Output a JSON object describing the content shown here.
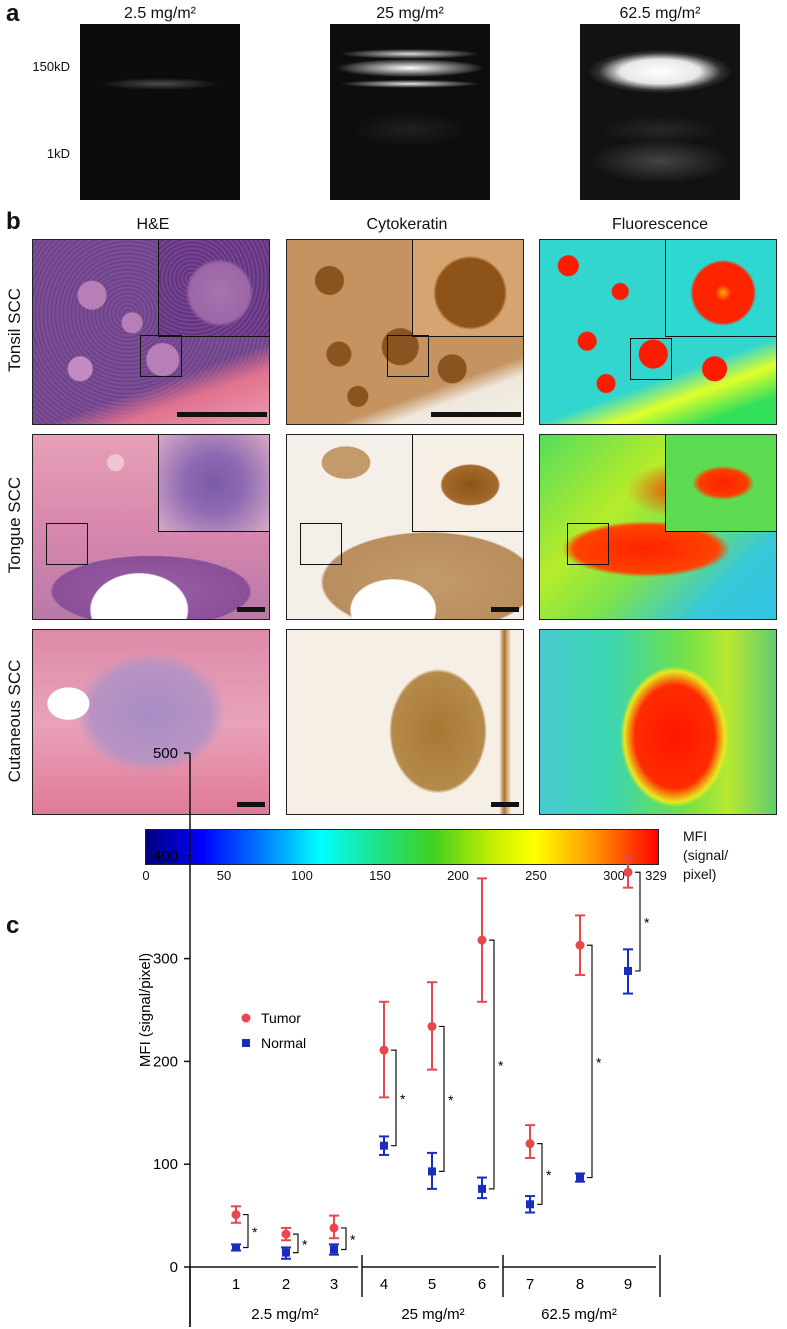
{
  "panel_a": {
    "letter": "a",
    "lanes": [
      {
        "label": "2.5 mg/m²"
      },
      {
        "label": "25 mg/m²"
      },
      {
        "label": "62.5 mg/m²"
      }
    ],
    "mw_markers": [
      "150kD",
      "1kD"
    ]
  },
  "panel_b": {
    "letter": "b",
    "columns": [
      "H&E",
      "Cytokeratin",
      "Fluorescence"
    ],
    "rows": [
      "Tonsil SCC",
      "Tongue SCC",
      "Cutaneous SCC"
    ],
    "colorbar": {
      "ticks": [
        "0",
        "50",
        "100",
        "150",
        "200",
        "250",
        "300",
        "329"
      ],
      "label": "MFI\n(signal/\npixel)",
      "label_lines": [
        "MFI",
        "(signal/",
        "pixel)"
      ]
    }
  },
  "panel_c": {
    "letter": "c",
    "chart_data": {
      "type": "scatter",
      "ylabel": "MFI (signal/pixel)",
      "ylim": [
        0,
        500
      ],
      "yticks": [
        0,
        100,
        200,
        300,
        400,
        500
      ],
      "x": [
        1,
        2,
        3,
        4,
        5,
        6,
        7,
        8,
        9
      ],
      "x_tick_labels": [
        "1",
        "2",
        "3",
        "4",
        "5",
        "6",
        "7",
        "8",
        "9"
      ],
      "groups": [
        {
          "label": "2.5 mg/m²",
          "x": [
            1,
            2,
            3
          ]
        },
        {
          "label": "25 mg/m²",
          "x": [
            4,
            5,
            6
          ]
        },
        {
          "label": "62.5 mg/m²",
          "x": [
            7,
            8,
            9
          ]
        }
      ],
      "series": [
        {
          "name": "Tumor",
          "color": "#e8474c",
          "marker": "circle",
          "values": [
            51,
            32,
            38,
            211,
            234,
            318,
            120,
            313,
            384
          ],
          "err_low": [
            43,
            26,
            28,
            165,
            192,
            258,
            106,
            284,
            369
          ],
          "err_high": [
            59,
            38,
            50,
            258,
            277,
            378,
            138,
            342,
            399
          ]
        },
        {
          "name": "Normal",
          "color": "#1a2bc0",
          "marker": "square",
          "values": [
            19,
            14,
            17,
            118,
            93,
            76,
            61,
            87,
            288
          ],
          "err_low": [
            16,
            8,
            12,
            109,
            76,
            67,
            53,
            83,
            266
          ],
          "err_high": [
            22,
            19,
            22,
            127,
            111,
            87,
            69,
            91,
            309
          ]
        }
      ],
      "significance": {
        "marker": "*",
        "x": [
          1,
          2,
          3,
          4,
          5,
          6,
          7,
          8,
          9
        ]
      },
      "legend_position": "top-left"
    }
  }
}
